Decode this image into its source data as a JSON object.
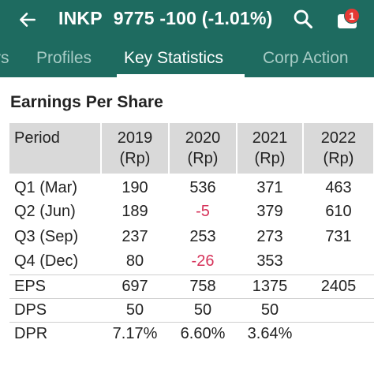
{
  "header": {
    "back_icon": "arrow-left-icon",
    "ticker": "INKP",
    "quote": "9775 -100 (-1.01%)",
    "search_icon": "search-icon",
    "notification_icon": "mail-icon",
    "notification_count": "1",
    "colors": {
      "bar": "#1e6b60",
      "badge": "#e53935"
    }
  },
  "tabs": [
    {
      "label": "rs"
    },
    {
      "label": "Profiles"
    },
    {
      "label": "Key Statistics",
      "active": true
    },
    {
      "label": "Corp Action"
    }
  ],
  "section": {
    "title": "Earnings Per Share"
  },
  "table": {
    "header": {
      "period": "Period",
      "years": [
        {
          "year": "2019",
          "unit": "(Rp)"
        },
        {
          "year": "2020",
          "unit": "(Rp)"
        },
        {
          "year": "2021",
          "unit": "(Rp)"
        },
        {
          "year": "2022",
          "unit": "(Rp)"
        }
      ]
    },
    "rows": [
      {
        "label": "Q1 (Mar)",
        "cells": [
          "190",
          "536",
          "371",
          "463"
        ]
      },
      {
        "label": "Q2 (Jun)",
        "cells": [
          "189",
          "-5",
          "379",
          "610"
        ]
      },
      {
        "label": "Q3 (Sep)",
        "cells": [
          "237",
          "253",
          "273",
          "731"
        ]
      },
      {
        "label": "Q4 (Dec)",
        "cells": [
          "80",
          "-26",
          "353",
          ""
        ]
      },
      {
        "label": "EPS",
        "cells": [
          "697",
          "758",
          "1375",
          "2405"
        ]
      },
      {
        "label": "DPS",
        "cells": [
          "50",
          "50",
          "50",
          ""
        ]
      },
      {
        "label": "DPR",
        "cells": [
          "7.17%",
          "6.60%",
          "3.64%",
          ""
        ]
      }
    ],
    "negative_color": "#d6335a"
  }
}
